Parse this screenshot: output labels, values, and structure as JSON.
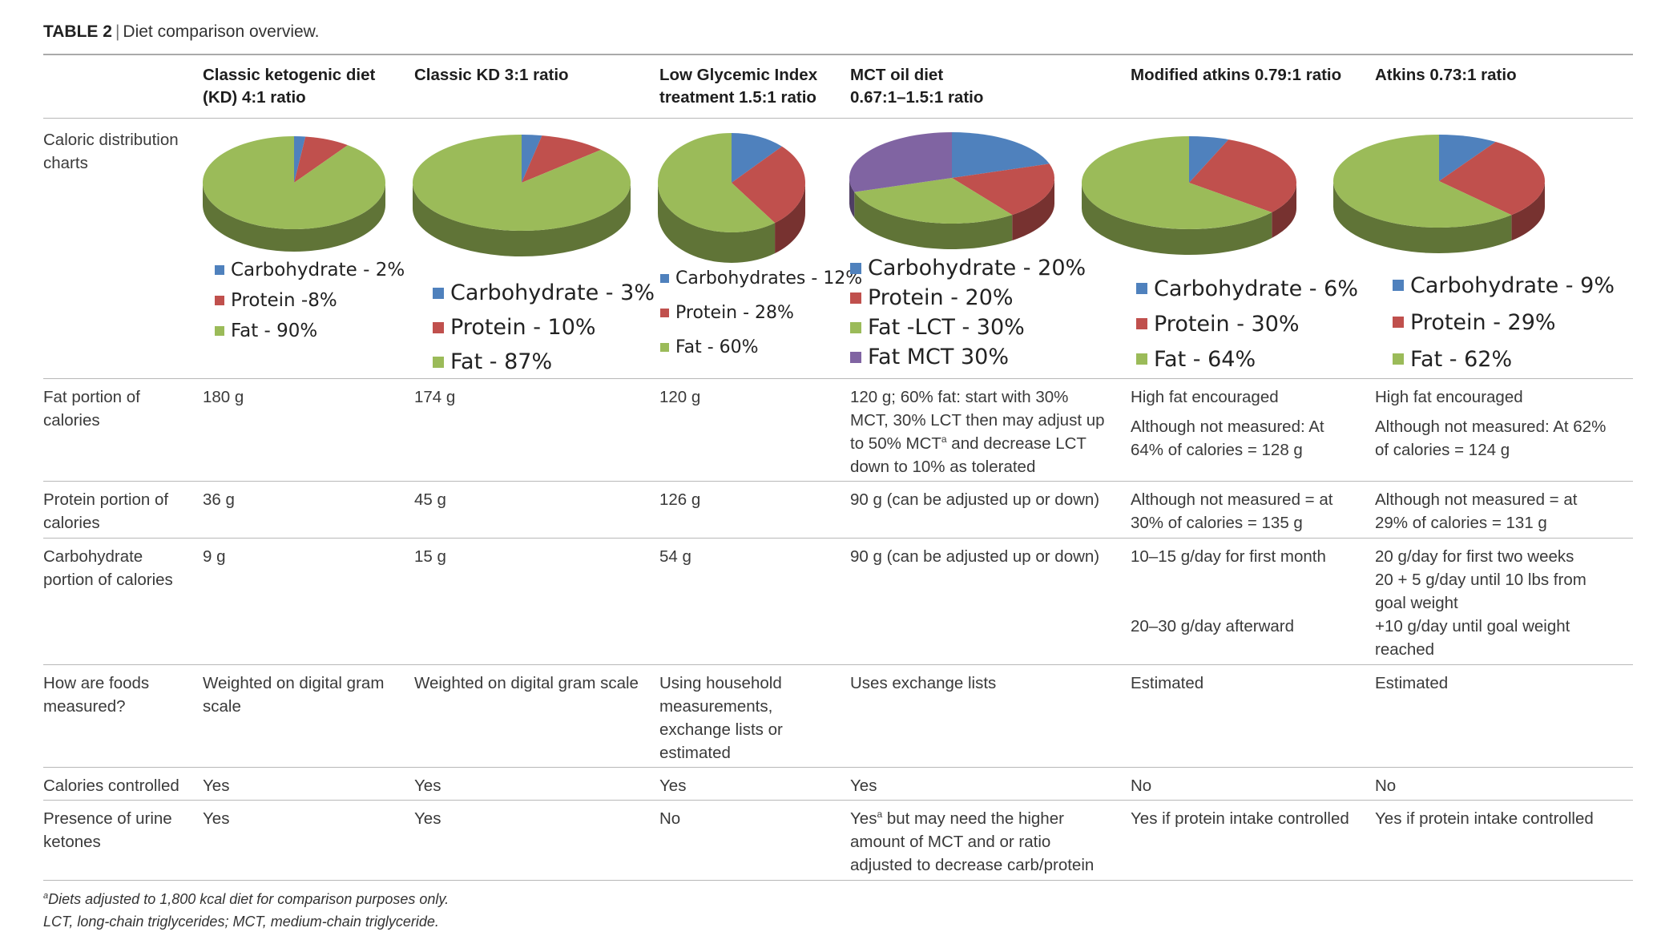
{
  "caption": {
    "label": "TABLE 2",
    "text": "Diet comparison overview."
  },
  "columns": [
    {
      "line1": "Classic ketogenic diet",
      "line2": "(KD) 4:1 ratio"
    },
    {
      "line1": "Classic KD 3:1 ratio",
      "line2": ""
    },
    {
      "line1": "Low Glycemic Index",
      "line2": "treatment 1.5:1 ratio"
    },
    {
      "line1": "MCT oil diet",
      "line2": "0.67:1–1.5:1 ratio"
    },
    {
      "line1": "Modified atkins 0.79:1 ratio",
      "line2": ""
    },
    {
      "line1": "Atkins 0.73:1 ratio",
      "line2": ""
    }
  ],
  "row_labels": {
    "charts": [
      "Caloric distribution",
      "charts"
    ],
    "fat": [
      "Fat portion of",
      "calories"
    ],
    "protein": [
      "Protein portion of",
      "calories"
    ],
    "carb": [
      "Carbohydrate",
      "portion of calories"
    ],
    "measured": [
      "How are foods",
      "measured?"
    ],
    "calories": [
      "Calories controlled"
    ],
    "ketones": [
      "Presence of urine",
      "ketones"
    ]
  },
  "colors": {
    "carbohydrate": "#4f81bd",
    "protein": "#c0504d",
    "fat": "#9bbb59",
    "fat_mct": "#8064a2"
  },
  "chart_data": [
    {
      "type": "pie",
      "slices": [
        {
          "name": "Carbohydrate - 2%",
          "value": 2,
          "color": "#4f81bd"
        },
        {
          "name": "Protein -8%",
          "value": 8,
          "color": "#c0504d"
        },
        {
          "name": "Fat - 90%",
          "value": 90,
          "color": "#9bbb59"
        }
      ]
    },
    {
      "type": "pie",
      "slices": [
        {
          "name": "Carbohydrate - 3%",
          "value": 3,
          "color": "#4f81bd"
        },
        {
          "name": "Protein - 10%",
          "value": 10,
          "color": "#c0504d"
        },
        {
          "name": "Fat - 87%",
          "value": 87,
          "color": "#9bbb59"
        }
      ]
    },
    {
      "type": "pie",
      "slices": [
        {
          "name": "Carbohydrates - 12%",
          "value": 12,
          "color": "#4f81bd"
        },
        {
          "name": "Protein - 28%",
          "value": 28,
          "color": "#c0504d"
        },
        {
          "name": "Fat - 60%",
          "value": 60,
          "color": "#9bbb59"
        }
      ]
    },
    {
      "type": "pie",
      "slices": [
        {
          "name": "Carbohydrate - 20%",
          "value": 20,
          "color": "#4f81bd"
        },
        {
          "name": "Protein - 20%",
          "value": 20,
          "color": "#c0504d"
        },
        {
          "name": "Fat -LCT  - 30%",
          "value": 30,
          "color": "#9bbb59"
        },
        {
          "name": "Fat MCT 30%",
          "value": 30,
          "color": "#8064a2"
        }
      ]
    },
    {
      "type": "pie",
      "slices": [
        {
          "name": "Carbohydrate - 6%",
          "value": 6,
          "color": "#4f81bd"
        },
        {
          "name": "Protein - 30%",
          "value": 30,
          "color": "#c0504d"
        },
        {
          "name": "Fat - 64%",
          "value": 64,
          "color": "#9bbb59"
        }
      ]
    },
    {
      "type": "pie",
      "slices": [
        {
          "name": "Carbohydrate - 9%",
          "value": 9,
          "color": "#4f81bd"
        },
        {
          "name": "Protein - 29%",
          "value": 29,
          "color": "#c0504d"
        },
        {
          "name": "Fat - 62%",
          "value": 62,
          "color": "#9bbb59"
        }
      ]
    }
  ],
  "rows": {
    "fat": [
      {
        "a": "180 g"
      },
      {
        "a": "174 g"
      },
      {
        "a": "120 g"
      },
      {
        "a": "120 g; 60% fat: start with 30%",
        "b": "MCT, 30% LCT then may adjust up",
        "c": "to 50% MCT",
        "sup": "a",
        "d": " and decrease LCT",
        "e": "down to 10% as tolerated"
      },
      {
        "a": "High fat encouraged",
        "b": "Although not measured: At",
        "c": "64% of calories = 128 g"
      },
      {
        "a": "High fat encouraged",
        "b": "Although not measured: At 62%",
        "c": "of calories = 124 g"
      }
    ],
    "protein": [
      {
        "a": "36 g"
      },
      {
        "a": "45 g"
      },
      {
        "a": "126 g"
      },
      {
        "a": "90 g (can be adjusted up or down)"
      },
      {
        "a": "Although not measured = at",
        "b": "30% of calories = 135 g"
      },
      {
        "a": "Although not measured = at",
        "b": "29% of calories = 131 g"
      }
    ],
    "carb": [
      {
        "a": "9 g"
      },
      {
        "a": "15 g"
      },
      {
        "a": "54 g"
      },
      {
        "a": "90 g (can be adjusted up or down)"
      },
      {
        "a": "10–15 g/day for first month",
        "b": "20–30 g/day afterward"
      },
      {
        "a": "20 g/day for first two weeks",
        "b": "20 + 5 g/day until 10 lbs from",
        "c": "goal weight",
        "d": "+10 g/day until goal weight",
        "e": "reached"
      }
    ],
    "measured": [
      {
        "a": "Weighted on digital gram",
        "b": "scale"
      },
      {
        "a": "Weighted on digital gram scale"
      },
      {
        "a": "Using household",
        "b": "measurements,",
        "c": "exchange lists or",
        "d": "estimated"
      },
      {
        "a": "Uses exchange lists"
      },
      {
        "a": "Estimated"
      },
      {
        "a": "Estimated"
      }
    ],
    "calories": [
      "Yes",
      "Yes",
      "Yes",
      "Yes",
      "No",
      "No"
    ],
    "ketones": [
      {
        "a": "Yes"
      },
      {
        "a": "Yes"
      },
      {
        "a": "No"
      },
      {
        "a": "Yes",
        "sup": "a",
        "b": " but may need the higher",
        "c": "amount of MCT and or ratio",
        "d": "adjusted to decrease carb/protein"
      },
      {
        "a": "Yes if protein intake controlled"
      },
      {
        "a": "Yes if protein intake controlled"
      }
    ]
  },
  "footnotes": {
    "a_mark": "a",
    "a_text": "Diets adjusted to 1,800 kcal diet for comparison purposes only.",
    "abbrev": "LCT, long-chain triglycerides; MCT, medium-chain triglyceride."
  }
}
